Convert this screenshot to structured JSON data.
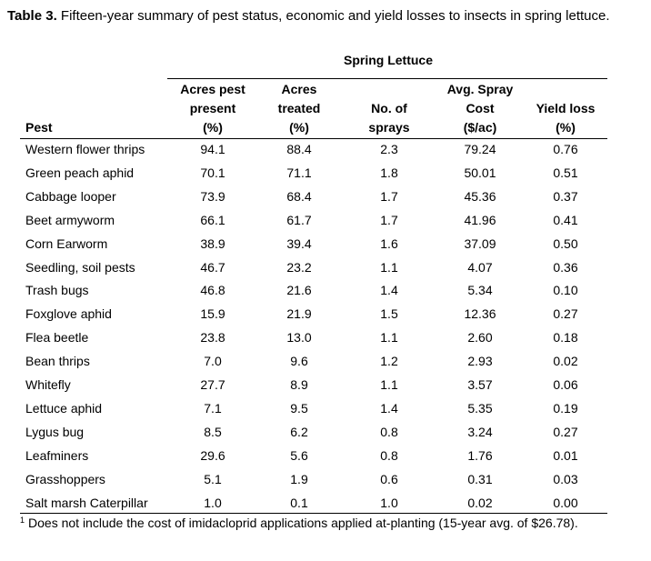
{
  "caption": {
    "label": "Table 3.",
    "text": " Fifteen-year summary of pest status, economic and yield losses to insects in spring lettuce."
  },
  "table": {
    "group_header": "Spring Lettuce",
    "columns": [
      [
        "Pest"
      ],
      [
        "Acres pest",
        "present",
        "(%)"
      ],
      [
        "Acres",
        "treated",
        "(%)"
      ],
      [
        "No. of",
        "sprays"
      ],
      [
        "Avg. Spray",
        "Cost",
        "($/ac)"
      ],
      [
        "Yield loss",
        "(%)"
      ]
    ],
    "rows": [
      [
        "Western flower thrips",
        "94.1",
        "88.4",
        "2.3",
        "79.24",
        "0.76"
      ],
      [
        "Green peach aphid",
        "70.1",
        "71.1",
        "1.8",
        "50.01",
        "0.51"
      ],
      [
        "Cabbage looper",
        "73.9",
        "68.4",
        "1.7",
        "45.36",
        "0.37"
      ],
      [
        "Beet armyworm",
        "66.1",
        "61.7",
        "1.7",
        "41.96",
        "0.41"
      ],
      [
        "Corn Earworm",
        "38.9",
        "39.4",
        "1.6",
        "37.09",
        "0.50"
      ],
      [
        "Seedling, soil pests",
        "46.7",
        "23.2",
        "1.1",
        "4.07",
        "0.36"
      ],
      [
        "Trash bugs",
        "46.8",
        "21.6",
        "1.4",
        "5.34",
        "0.10"
      ],
      [
        "Foxglove aphid",
        "15.9",
        "21.9",
        "1.5",
        "12.36",
        "0.27"
      ],
      [
        "Flea beetle",
        "23.8",
        "13.0",
        "1.1",
        "2.60",
        "0.18"
      ],
      [
        "Bean thrips",
        "7.0",
        "9.6",
        "1.2",
        "2.93",
        "0.02"
      ],
      [
        "Whitefly",
        "27.7",
        "8.9",
        "1.1",
        "3.57",
        "0.06"
      ],
      [
        "Lettuce aphid",
        "7.1",
        "9.5",
        "1.4",
        "5.35",
        "0.19"
      ],
      [
        "Lygus bug",
        "8.5",
        "6.2",
        "0.8",
        "3.24",
        "0.27"
      ],
      [
        "Leafminers",
        "29.6",
        "5.6",
        "0.8",
        "1.76",
        "0.01"
      ],
      [
        "Grasshoppers",
        "5.1",
        "1.9",
        "0.6",
        "0.31",
        "0.03"
      ],
      [
        "Salt marsh Caterpillar",
        "1.0",
        "0.1",
        "1.0",
        "0.02",
        "0.00"
      ]
    ]
  },
  "footnote": {
    "marker": "1",
    "text": "Does not include the cost of imidacloprid applications applied at-planting (15-year avg. of $26.78)."
  }
}
